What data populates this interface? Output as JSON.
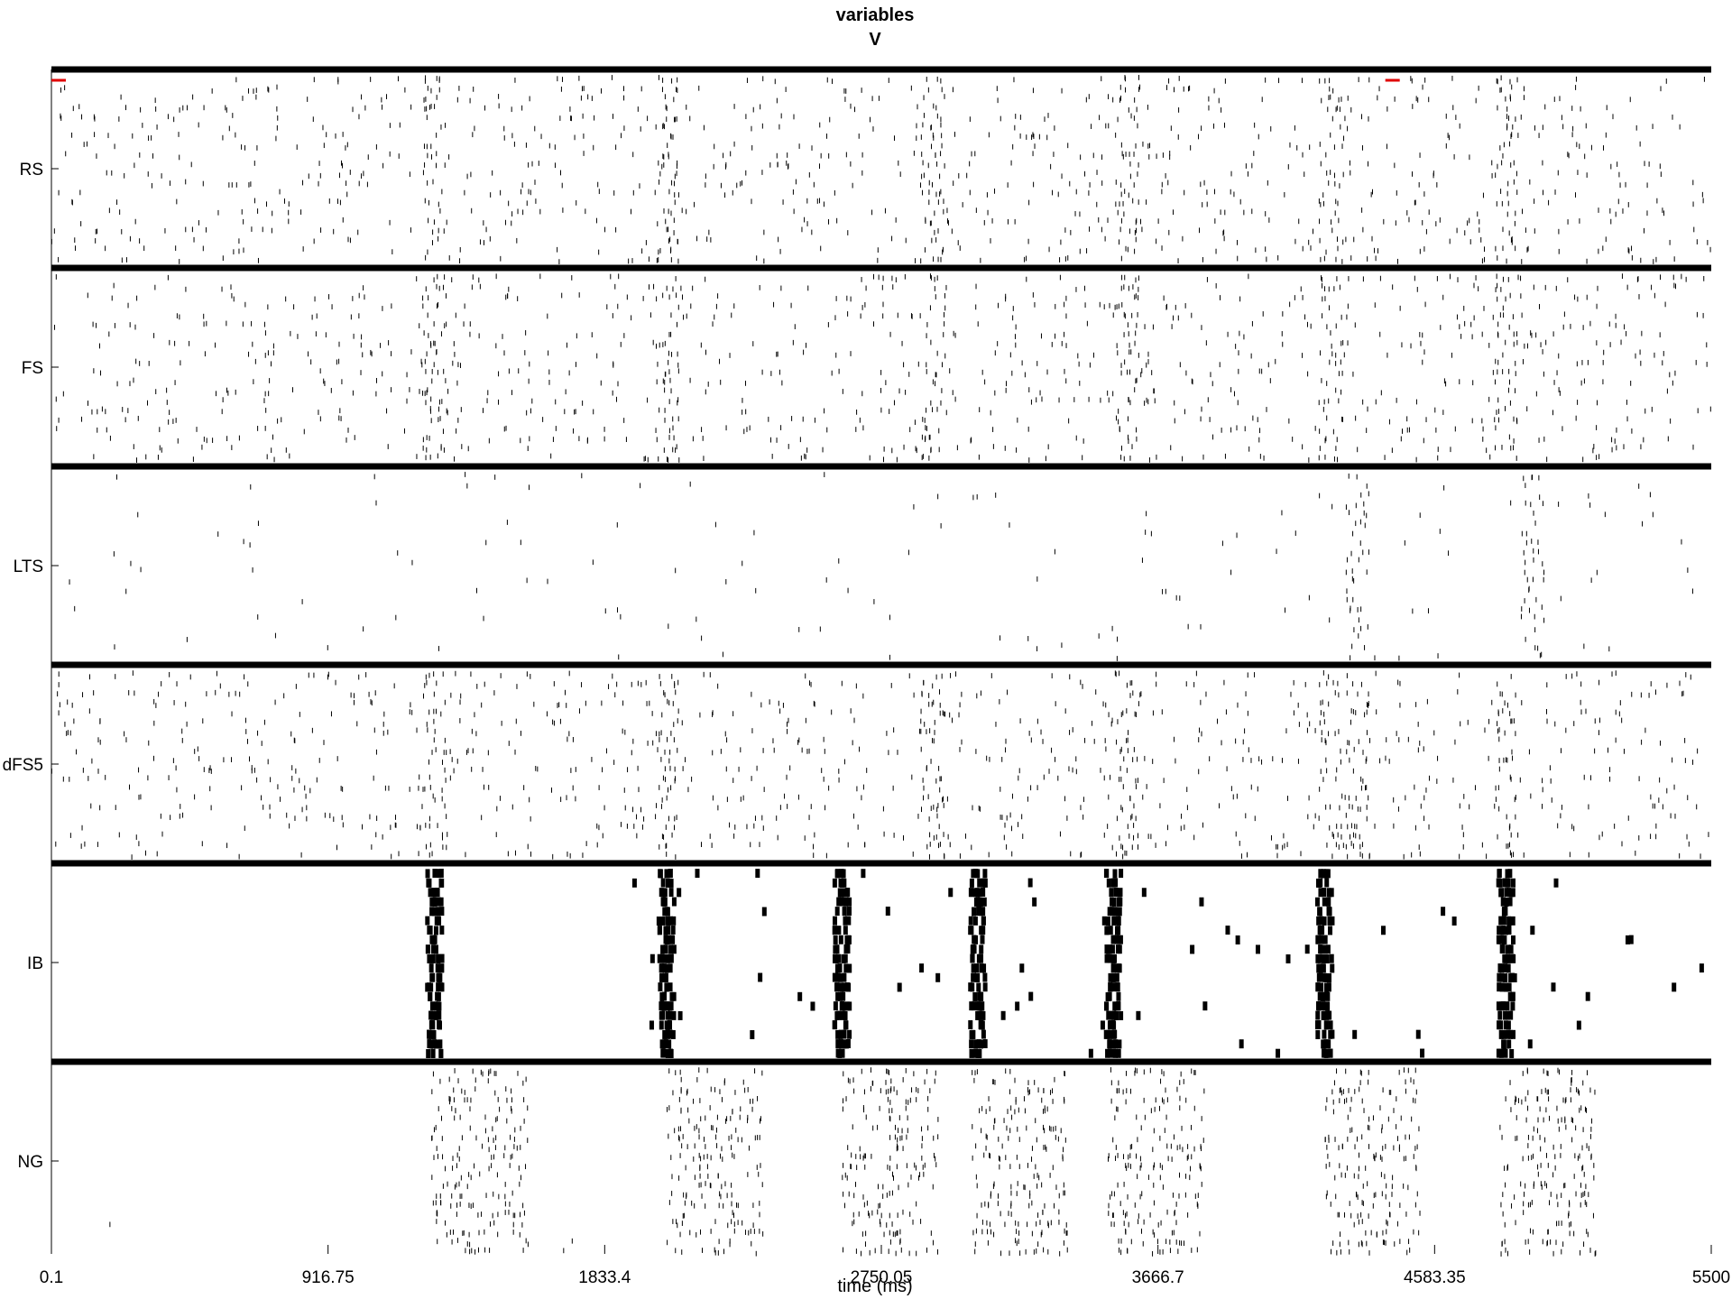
{
  "chart_data": {
    "type": "scatter",
    "title": "variables",
    "subtitle": "V",
    "xlabel": "time (ms)",
    "xlim": [
      0.1,
      5500
    ],
    "x_ticks": [
      "0.1",
      "916.75",
      "1833.4",
      "2750.05",
      "3666.7",
      "4583.35",
      "5500"
    ],
    "x_tick_values": [
      0.1,
      916.75,
      1833.4,
      2750.05,
      3666.7,
      4583.35,
      5500
    ],
    "grid": false,
    "series": [
      {
        "name": "RS",
        "rows": 20,
        "burst_times": [
          1270,
          2040,
          2920,
          3565,
          4240,
          4820
        ],
        "scattered_range": [
          0.1,
          5500
        ],
        "markers": [
          [
            0.1,
            0
          ],
          [
            4420,
            0
          ]
        ],
        "marker_color": "#e00000"
      },
      {
        "name": "FS",
        "rows": 20,
        "burst_times": [
          1270,
          2040,
          2920,
          3565,
          4240,
          4820
        ],
        "scattered_range": [
          0.1,
          5500
        ]
      },
      {
        "name": "LTS",
        "rows": 20,
        "burst_times": [
          4330,
          4910
        ],
        "scattered_range": [
          0.1,
          5500
        ]
      },
      {
        "name": "dFS5",
        "rows": 20,
        "burst_times": [
          1270,
          2040,
          2920,
          3565,
          4240,
          4330,
          4820
        ],
        "scattered_range": [
          0.1,
          5500
        ]
      },
      {
        "name": "IB",
        "rows": 20,
        "burst_times": [
          1270,
          2040,
          2620,
          3070,
          3520,
          4220,
          4820
        ],
        "scattered_range": [
          1900,
          5500
        ]
      },
      {
        "name": "NG",
        "rows": 20,
        "burst_times": [
          1260,
          2040,
          2620,
          3050,
          3500,
          4220,
          4800
        ],
        "scattered_range": [
          0.1,
          5500
        ]
      }
    ]
  }
}
